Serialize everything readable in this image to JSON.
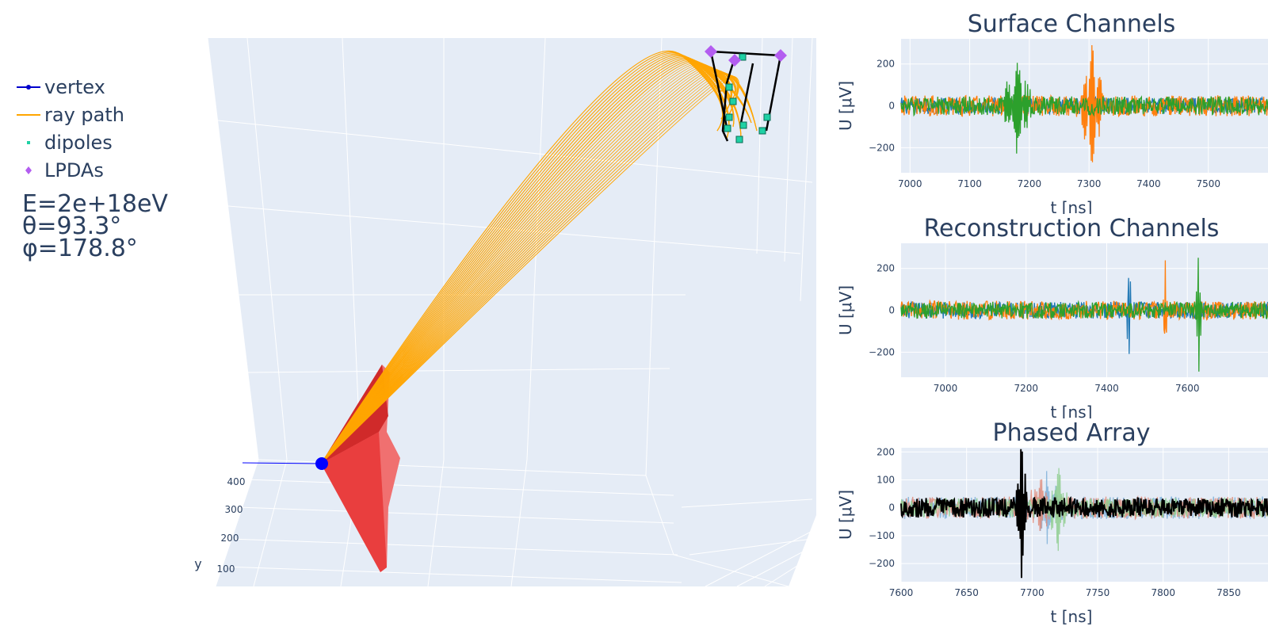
{
  "legend": {
    "items": [
      {
        "label": "vertex",
        "color": "#0000cc",
        "type": "line-marker"
      },
      {
        "label": "ray path",
        "color": "#ffa500",
        "type": "line"
      },
      {
        "label": "dipoles",
        "color": "#1fd1a5",
        "type": "marker"
      },
      {
        "label": "LPDAs",
        "color": "#b35df0",
        "type": "diamond"
      }
    ]
  },
  "event": {
    "energy": "E=2e+18eV",
    "theta": "θ=93.3°",
    "phi": "φ=178.8°"
  },
  "scene3d": {
    "ylabel": "y",
    "yticks": [
      "400",
      "300",
      "200",
      "100"
    ],
    "colors": {
      "vertex": "#0000ff",
      "ray": "#ffa500",
      "cone": "#ee2222",
      "dipole": "#1fd1a5",
      "lpda": "#b35df0",
      "string": "#000000",
      "bg": "#e5ecf6"
    }
  },
  "chart_data": [
    {
      "type": "line",
      "title": "Surface Channels",
      "xlabel": "t [ns]",
      "ylabel": "U [μV]",
      "xlim": [
        6985,
        7600
      ],
      "ylim": [
        -320,
        320
      ],
      "xticks": [
        7000,
        7100,
        7200,
        7300,
        7400,
        7500
      ],
      "yticks": [
        200,
        0,
        -200
      ],
      "series": [
        {
          "color": "#1f77b4",
          "noise": 40,
          "pulses": []
        },
        {
          "color": "#ff7f0e",
          "noise": 50,
          "pulses": [
            {
              "x": 7305,
              "amp": 290,
              "width": 14
            }
          ]
        },
        {
          "color": "#2ca02c",
          "noise": 45,
          "pulses": [
            {
              "x": 7180,
              "amp": 190,
              "width": 18
            }
          ]
        }
      ]
    },
    {
      "type": "line",
      "title": "Reconstruction Channels",
      "xlabel": "t [ns]",
      "ylabel": "U [μV]",
      "xlim": [
        6890,
        7800
      ],
      "ylim": [
        -320,
        320
      ],
      "xticks": [
        7000,
        7200,
        7400,
        7600
      ],
      "yticks": [
        200,
        0,
        -200
      ],
      "series": [
        {
          "color": "#1f77b4",
          "noise": 40,
          "pulses": [
            {
              "x": 7455,
              "amp": 250,
              "width": 4
            }
          ]
        },
        {
          "color": "#ff7f0e",
          "noise": 45,
          "pulses": [
            {
              "x": 7545,
              "amp": 280,
              "width": 4
            }
          ]
        },
        {
          "color": "#2ca02c",
          "noise": 40,
          "pulses": [
            {
              "x": 7628,
              "amp": 290,
              "width": 5
            }
          ]
        }
      ]
    },
    {
      "type": "line",
      "title": "Phased Array",
      "xlabel": "t [ns]",
      "ylabel": "U [μV]",
      "xlim": [
        7600,
        7880
      ],
      "ylim": [
        -265,
        215
      ],
      "xticks": [
        7600,
        7650,
        7700,
        7750,
        7800,
        7850
      ],
      "yticks": [
        200,
        100,
        0,
        -100,
        -200
      ],
      "series": [
        {
          "color": "#7fb0d8",
          "noise": 40,
          "pulses": [
            {
              "x": 7712,
              "amp": 110,
              "width": 6
            }
          ]
        },
        {
          "color": "#e08c7a",
          "noise": 40,
          "pulses": [
            {
              "x": 7706,
              "amp": 90,
              "width": 6
            }
          ]
        },
        {
          "color": "#8fce8f",
          "noise": 35,
          "pulses": [
            {
              "x": 7720,
              "amp": 120,
              "width": 6
            }
          ]
        },
        {
          "color": "#000000",
          "noise": 35,
          "pulses": [
            {
              "x": 7692,
              "amp": 260,
              "width": 3
            }
          ]
        }
      ]
    }
  ]
}
